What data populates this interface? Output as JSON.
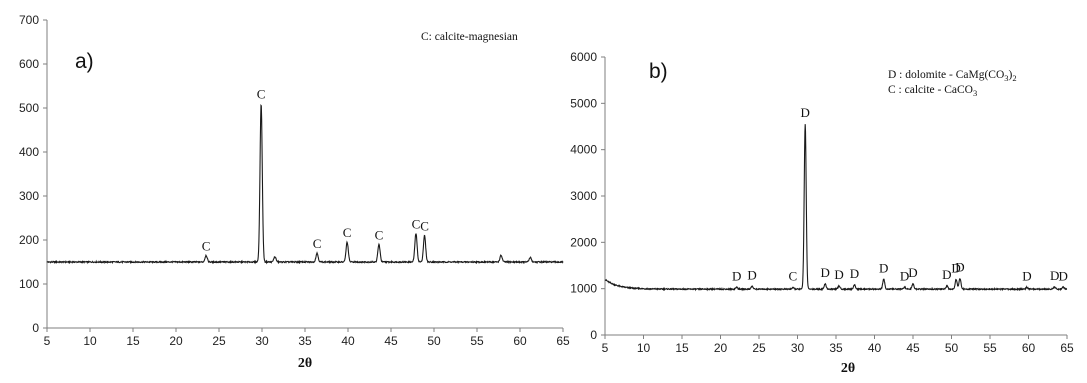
{
  "chart_data": [
    {
      "type": "line",
      "panel_label": "a)",
      "xlabel": "2θ",
      "ylabel": "",
      "xlim": [
        5,
        65
      ],
      "ylim": [
        0,
        700
      ],
      "xticks": [
        "5",
        "10",
        "15",
        "20",
        "25",
        "30",
        "35",
        "40",
        "45",
        "50",
        "55",
        "60",
        "65"
      ],
      "yticks": [
        "0",
        "100",
        "200",
        "300",
        "400",
        "500",
        "600",
        "700"
      ],
      "legend": [
        {
          "text": "C: calcite-magnesian"
        }
      ],
      "baseline": 150,
      "peaks": [
        {
          "x": 23.5,
          "y": 165,
          "label": "C"
        },
        {
          "x": 29.9,
          "y": 510,
          "label": "C"
        },
        {
          "x": 31.5,
          "y": 162,
          "label": ""
        },
        {
          "x": 36.4,
          "y": 170,
          "label": "C"
        },
        {
          "x": 39.9,
          "y": 195,
          "label": "C"
        },
        {
          "x": 43.6,
          "y": 190,
          "label": "C"
        },
        {
          "x": 47.9,
          "y": 215,
          "label": "C"
        },
        {
          "x": 48.9,
          "y": 210,
          "label": "C"
        },
        {
          "x": 57.8,
          "y": 165,
          "label": ""
        },
        {
          "x": 61.2,
          "y": 160,
          "label": ""
        }
      ]
    },
    {
      "type": "line",
      "panel_label": "b)",
      "xlabel": "2θ",
      "ylabel": "",
      "xlim": [
        5,
        65
      ],
      "ylim": [
        0,
        6000
      ],
      "xticks": [
        "5",
        "10",
        "15",
        "20",
        "25",
        "30",
        "35",
        "40",
        "45",
        "50",
        "55",
        "60",
        "65"
      ],
      "yticks": [
        "0",
        "1000",
        "2000",
        "3000",
        "4000",
        "5000",
        "6000"
      ],
      "legend": [
        {
          "text": "D : dolomite - CaMg(CO",
          "sub": "3",
          "close": ")",
          "sub2": "2"
        },
        {
          "text": "C : calcite - CaCO",
          "sub": "3"
        }
      ],
      "start_value": 1200,
      "baseline": 990,
      "peaks": [
        {
          "x": 22.1,
          "y": 1030,
          "label": "D"
        },
        {
          "x": 24.1,
          "y": 1050,
          "label": "D"
        },
        {
          "x": 29.4,
          "y": 1020,
          "label": "C"
        },
        {
          "x": 31.0,
          "y": 4550,
          "label": "D"
        },
        {
          "x": 33.6,
          "y": 1100,
          "label": "D"
        },
        {
          "x": 35.4,
          "y": 1060,
          "label": "D"
        },
        {
          "x": 37.4,
          "y": 1080,
          "label": "D"
        },
        {
          "x": 41.2,
          "y": 1200,
          "label": "D"
        },
        {
          "x": 43.9,
          "y": 1030,
          "label": "D"
        },
        {
          "x": 45.0,
          "y": 1100,
          "label": "D"
        },
        {
          "x": 49.4,
          "y": 1060,
          "label": "D"
        },
        {
          "x": 50.6,
          "y": 1200,
          "label": "D"
        },
        {
          "x": 51.1,
          "y": 1220,
          "label": "D"
        },
        {
          "x": 59.8,
          "y": 1030,
          "label": "D"
        },
        {
          "x": 63.4,
          "y": 1040,
          "label": "D"
        },
        {
          "x": 64.5,
          "y": 1030,
          "label": "D"
        }
      ]
    }
  ]
}
